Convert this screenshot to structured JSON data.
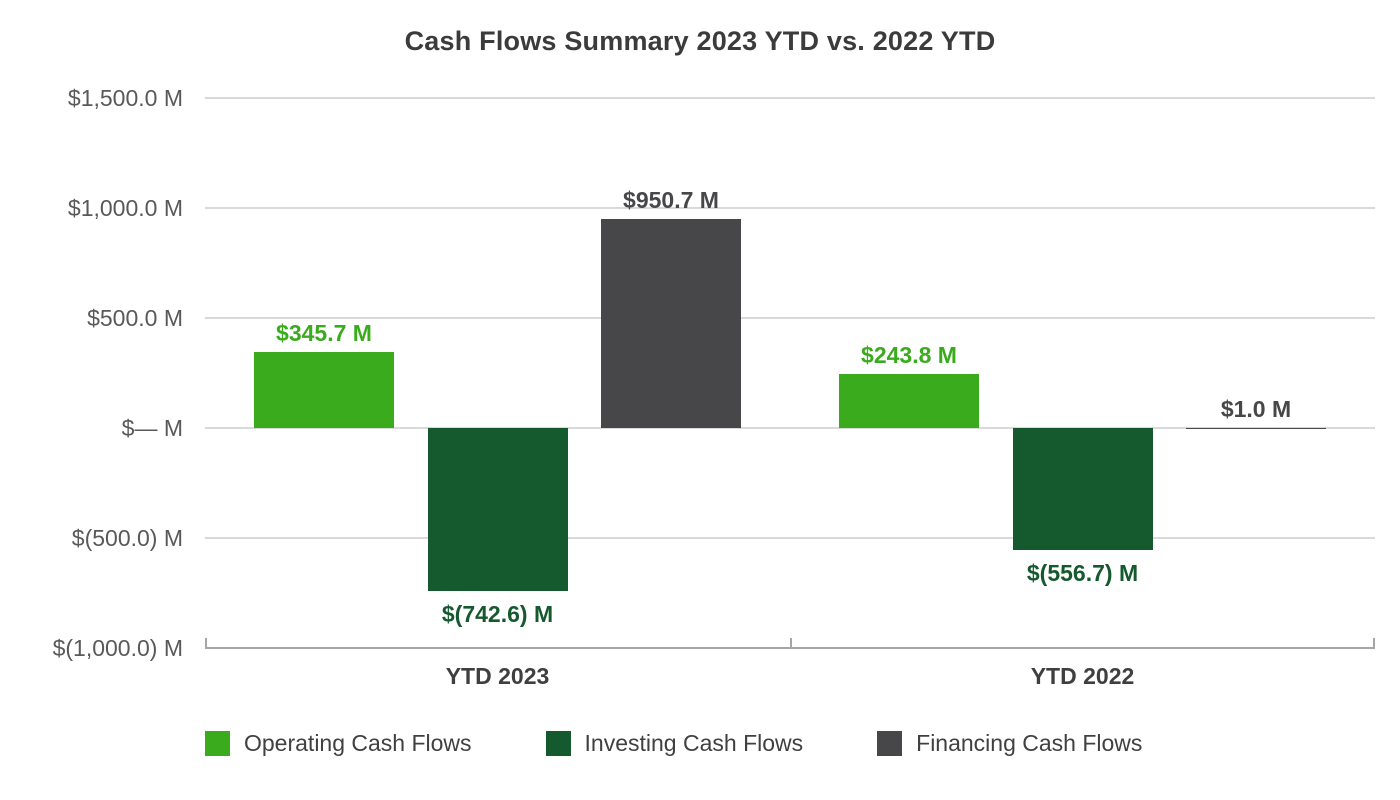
{
  "chart_data": {
    "type": "bar",
    "title": "Cash Flows Summary 2023 YTD vs. 2022 YTD",
    "unit": "M",
    "categories": [
      "YTD 2023",
      "YTD 2022"
    ],
    "series": [
      {
        "name": "Operating Cash Flows",
        "color": "#3aab1d",
        "values": [
          345.7,
          243.8
        ],
        "value_labels": [
          "$345.7 M",
          "$243.8 M"
        ]
      },
      {
        "name": "Investing Cash Flows",
        "color": "#15592e",
        "values": [
          -742.6,
          -556.7
        ],
        "value_labels": [
          "$(742.6) M",
          "$(556.7) M"
        ]
      },
      {
        "name": "Financing Cash Flows",
        "color": "#474749",
        "values": [
          950.7,
          1.0
        ],
        "value_labels": [
          "$950.7 M",
          "$1.0 M"
        ]
      }
    ],
    "y_axis": {
      "min": -1000,
      "max": 1500,
      "ticks": [
        {
          "value": 1500,
          "label": "$1,500.0 M"
        },
        {
          "value": 1000,
          "label": "$1,000.0 M"
        },
        {
          "value": 500,
          "label": "$500.0 M"
        },
        {
          "value": 0,
          "label": "$— M"
        },
        {
          "value": -500,
          "label": "$(500.0) M"
        },
        {
          "value": -1000,
          "label": "$(1,000.0) M"
        }
      ]
    },
    "grid": true,
    "legend_position": "bottom"
  }
}
